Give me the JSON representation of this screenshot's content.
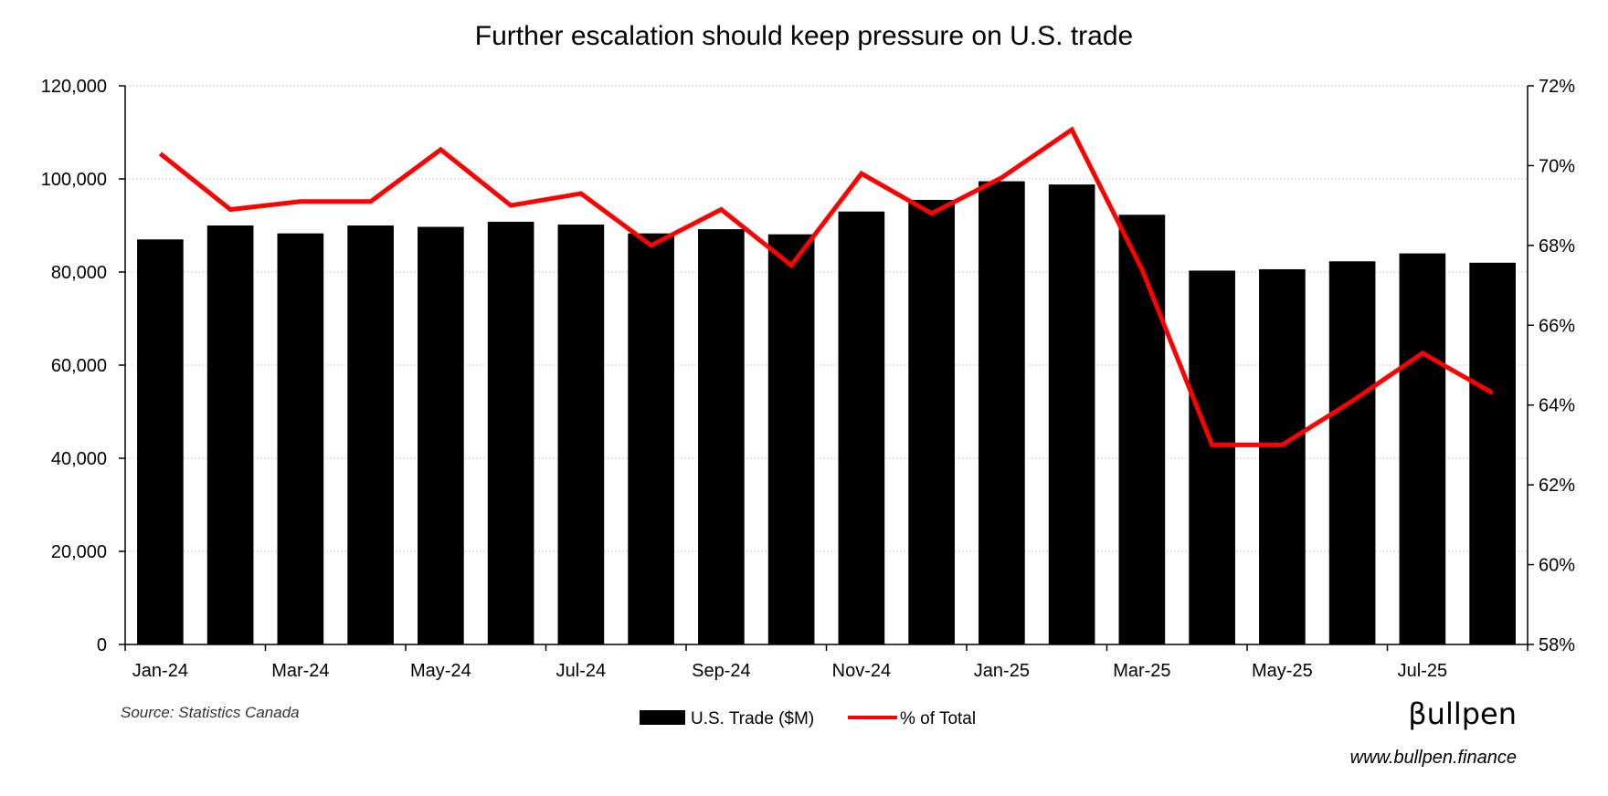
{
  "chart_data": {
    "type": "bar",
    "title": "Further escalation should keep pressure on U.S. trade",
    "categories": [
      "Jan-24",
      "Feb-24",
      "Mar-24",
      "Apr-24",
      "May-24",
      "Jun-24",
      "Jul-24",
      "Aug-24",
      "Sep-24",
      "Oct-24",
      "Nov-24",
      "Dec-24",
      "Jan-25",
      "Feb-25",
      "Mar-25",
      "Apr-25",
      "May-25",
      "Jun-25",
      "Jul-25",
      "Aug-25"
    ],
    "x_tick_labels": [
      "Jan-24",
      "Mar-24",
      "May-24",
      "Jul-24",
      "Sep-24",
      "Nov-24",
      "Jan-25",
      "Mar-25",
      "May-25",
      "Jul-25"
    ],
    "series": [
      {
        "name": "U.S. Trade ($M)",
        "kind": "bar",
        "axis": "left",
        "color": "#000000",
        "values": [
          87000,
          90000,
          88300,
          90000,
          89700,
          90800,
          90200,
          88300,
          89200,
          88100,
          93000,
          95500,
          99500,
          98800,
          92300,
          80300,
          80600,
          82300,
          84000,
          82000
        ]
      },
      {
        "name": "% of Total",
        "kind": "line",
        "axis": "right",
        "color": "#ff0000",
        "values": [
          70.3,
          68.9,
          69.1,
          69.1,
          70.4,
          69.0,
          69.3,
          68.0,
          68.9,
          67.5,
          69.8,
          68.8,
          69.7,
          70.9,
          67.4,
          63.0,
          63.0,
          64.1,
          65.3,
          64.3
        ]
      }
    ],
    "y_left": {
      "min": 0,
      "max": 120000,
      "step": 20000,
      "labels": [
        "0",
        "20,000",
        "40,000",
        "60,000",
        "80,000",
        "100,000",
        "120,000"
      ]
    },
    "y_right": {
      "min": 58,
      "max": 72,
      "step": 2,
      "labels": [
        "58%",
        "60%",
        "62%",
        "64%",
        "66%",
        "68%",
        "70%",
        "72%"
      ]
    },
    "grid": true,
    "legend_position": "bottom-center"
  },
  "footer": {
    "source": "Source: Statistics Canada",
    "brand": "βullpen",
    "url": "www.bullpen.finance"
  }
}
